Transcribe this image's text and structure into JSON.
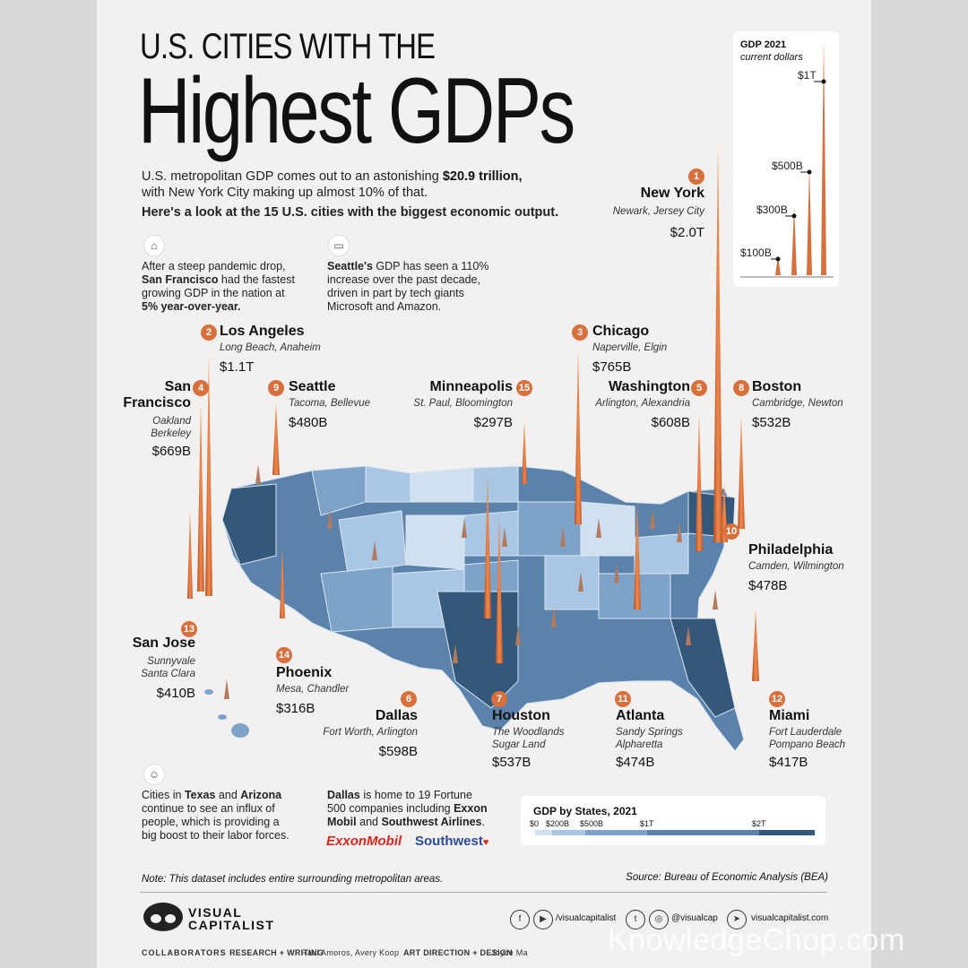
{
  "title": {
    "line1": "U.S. CITIES WITH THE",
    "line2": "Highest GDPs"
  },
  "intro": {
    "line1_a": "U.S. metropolitan GDP comes out to an astonishing ",
    "line1_b": "$20.9 trillion,",
    "line2": "with New York City making up almost 10% of that.",
    "line3": "Here's a look at the 15 U.S. cities with the biggest economic output."
  },
  "notes": {
    "sf": {
      "a": "After a steep pandemic drop,",
      "b1": "San Francisco",
      "b2": " had the fastest",
      "c": "growing GDP in the nation at",
      "d": "5% year-over-year."
    },
    "seattle": {
      "a1": "Seattle's",
      "a2": " GDP has seen a 110%",
      "b": "increase over the past decade,",
      "c": "driven in part by tech giants",
      "d": "Microsoft and Amazon."
    },
    "texas": {
      "a1": "Cities in ",
      "a2": "Texas",
      "a3": " and ",
      "a4": "Arizona",
      "b": "continue to see an influx of",
      "c": "people, which is providing a",
      "d": "big boost to their labor forces."
    },
    "dallas": {
      "a1": "Dallas",
      "a2": " is home to 19 Fortune",
      "b1": "500 companies including ",
      "b2": "Exxon",
      "c1": "Mobil",
      "c2": " and ",
      "c3": "Southwest Airlines",
      "c4": "."
    }
  },
  "logos": {
    "exxon": "ExxonMobil",
    "southwest": "Southwest"
  },
  "gdp_scale": {
    "title": "GDP 2021",
    "subtitle": "current dollars",
    "labels": [
      "$1T",
      "$500B",
      "$300B",
      "$100B"
    ]
  },
  "cities": [
    {
      "rank": "1",
      "name": "New York",
      "sub": "Newark, Jersey City",
      "value": "$2.0T"
    },
    {
      "rank": "2",
      "name": "Los Angeles",
      "sub": "Long Beach, Anaheim",
      "value": "$1.1T"
    },
    {
      "rank": "3",
      "name": "Chicago",
      "sub": "Naperville, Elgin",
      "value": "$765B"
    },
    {
      "rank": "4",
      "name": "San",
      "name2": "Francisco",
      "sub": "Oakland",
      "sub2": "Berkeley",
      "value": "$669B"
    },
    {
      "rank": "5",
      "name": "Washington",
      "sub": "Arlington, Alexandria",
      "value": "$608B"
    },
    {
      "rank": "6",
      "name": "Dallas",
      "sub": "Fort Worth, Arlington",
      "value": "$598B"
    },
    {
      "rank": "7",
      "name": "Houston",
      "sub": "The Woodlands",
      "sub2": "Sugar Land",
      "value": "$537B"
    },
    {
      "rank": "8",
      "name": "Boston",
      "sub": "Cambridge, Newton",
      "value": "$532B"
    },
    {
      "rank": "9",
      "name": "Seattle",
      "sub": "Tacoma, Bellevue",
      "value": "$480B"
    },
    {
      "rank": "10",
      "name": "Philadelphia",
      "sub": "Camden, Wilmington",
      "value": "$478B"
    },
    {
      "rank": "11",
      "name": "Atlanta",
      "sub": "Sandy Springs",
      "sub2": "Alpharetta",
      "value": "$474B"
    },
    {
      "rank": "12",
      "name": "Miami",
      "sub": "Fort Lauderdale",
      "sub2": "Pompano Beach",
      "value": "$417B"
    },
    {
      "rank": "13",
      "name": "San Jose",
      "sub": "Sunnyvale",
      "sub2": "Santa Clara",
      "value": "$410B"
    },
    {
      "rank": "14",
      "name": "Phoenix",
      "sub": "Mesa, Chandler",
      "value": "$316B"
    },
    {
      "rank": "15",
      "name": "Minneapolis",
      "sub": "St. Paul,  Bloomington",
      "value": "$297B"
    }
  ],
  "legend": {
    "title": "GDP by States, 2021",
    "ticks": [
      "$0",
      "$200B",
      "$500B",
      "$1T",
      "$2T"
    ],
    "colors": [
      "#cfe0f0",
      "#a9c6e4",
      "#7ea3c8",
      "#5a82aa",
      "#34587a"
    ]
  },
  "footnote": "Note: This dataset includes entire surrounding metropolitan areas.",
  "source": "Source: Bureau of Economic Analysis (BEA)",
  "brand": {
    "line1": "VISUAL",
    "line2": "CAPITALIST"
  },
  "social": {
    "handle1": "/visualcapitalist",
    "handle2": "@visualcap",
    "site": "visualcapitalist.com"
  },
  "credits": {
    "label": "COLLABORATORS",
    "rw_label": "RESEARCH + WRITING",
    "rw": "Raul Amoros, Avery Koop",
    "ad_label": "ART DIRECTION + DESIGN",
    "ad": "Joyce Ma"
  },
  "watermark": "KnowledgeChop.com",
  "colors": {
    "accent": "#d8703e",
    "map_dark": "#34587a",
    "map_light": "#cfe0f0"
  }
}
